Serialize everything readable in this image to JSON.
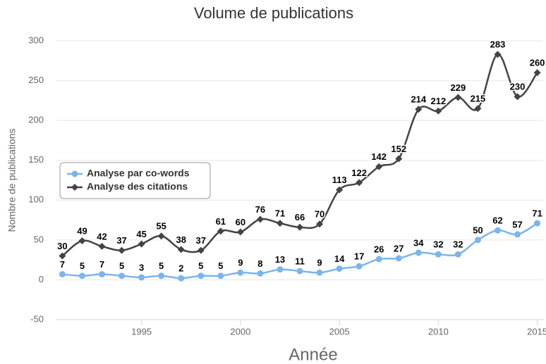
{
  "chart_data": {
    "type": "line",
    "title": "Volume de publications",
    "xlabel": "Année",
    "ylabel": "Nombre de publications",
    "x": [
      1991,
      1992,
      1993,
      1994,
      1995,
      1996,
      1997,
      1998,
      1999,
      2000,
      2001,
      2002,
      2003,
      2004,
      2005,
      2006,
      2007,
      2008,
      2009,
      2010,
      2011,
      2012,
      2013,
      2014,
      2015
    ],
    "series": [
      {
        "name": "Analyse par co-words",
        "color": "#7cb5ec",
        "marker": "circle",
        "values": [
          7,
          5,
          7,
          5,
          3,
          5,
          2,
          5,
          5,
          9,
          8,
          13,
          11,
          9,
          14,
          17,
          26,
          27,
          34,
          32,
          32,
          50,
          62,
          57,
          71
        ]
      },
      {
        "name": "Analyse des citations",
        "color": "#434348",
        "marker": "diamond",
        "values": [
          30,
          49,
          42,
          37,
          45,
          55,
          38,
          37,
          61,
          60,
          76,
          71,
          66,
          70,
          113,
          122,
          142,
          152,
          214,
          212,
          229,
          215,
          283,
          230,
          260
        ]
      }
    ],
    "xlim": [
      1990.7,
      2015.3
    ],
    "xticks": [
      1995,
      2000,
      2005,
      2010,
      2015
    ],
    "ylim": [
      -50,
      300
    ],
    "yticks": [
      -50,
      0,
      50,
      100,
      150,
      200,
      250,
      300
    ],
    "grid": true,
    "smooth": true,
    "legend_position": "left"
  }
}
